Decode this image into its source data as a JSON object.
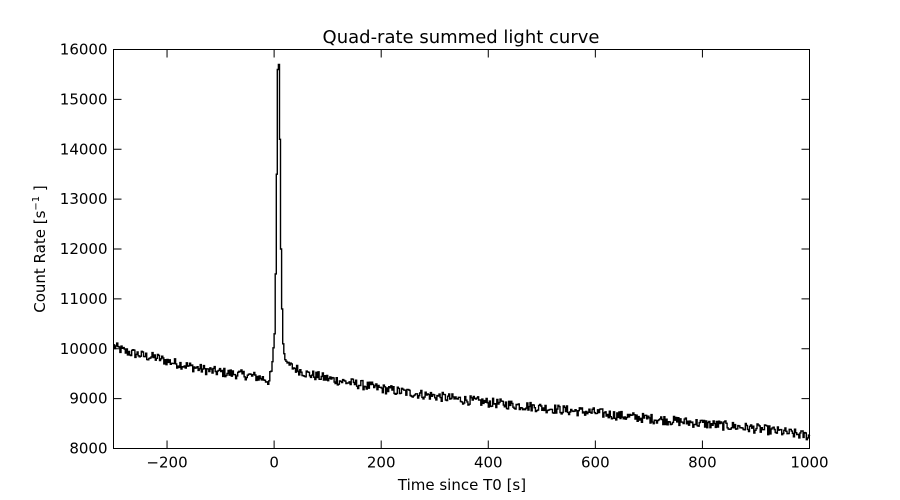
{
  "chart_data": {
    "type": "line",
    "title": "Quad-rate summed light curve",
    "xlabel": "Time since T0 [s]",
    "ylabel": "Count Rate [s",
    "ylabel_sup": "−1",
    "ylabel_close": " ]",
    "xlim": [
      -300,
      1000
    ],
    "ylim": [
      8000,
      16000
    ],
    "xticks": [
      -200,
      0,
      200,
      400,
      600,
      800,
      1000
    ],
    "yticks": [
      8000,
      9000,
      10000,
      11000,
      12000,
      13000,
      14000,
      15000,
      16000
    ],
    "xtick_labels": [
      "−200",
      "0",
      "200",
      "400",
      "600",
      "800",
      "1000"
    ],
    "ytick_labels": [
      "8000",
      "9000",
      "10000",
      "11000",
      "12000",
      "13000",
      "14000",
      "15000",
      "16000"
    ],
    "grid": false,
    "line_color": "#000000",
    "series": [
      {
        "x": [
          -300,
          -280,
          -260,
          -240,
          -220,
          -200,
          -180,
          -160,
          -140,
          -120,
          -100,
          -80,
          -60,
          -40,
          -20,
          -10,
          -5,
          0,
          2,
          4,
          6,
          8,
          10,
          12,
          14,
          16,
          18,
          20,
          25,
          30,
          40,
          60,
          80,
          100,
          150,
          200,
          250,
          300,
          350,
          400,
          450,
          500,
          550,
          600,
          650,
          700,
          750,
          800,
          850,
          900,
          950,
          1000
        ],
        "y": [
          10050,
          9950,
          9900,
          9850,
          9820,
          9750,
          9700,
          9650,
          9600,
          9560,
          9530,
          9500,
          9480,
          9450,
          9400,
          9350,
          9600,
          10300,
          11500,
          13500,
          15600,
          15700,
          14200,
          12000,
          10800,
          10100,
          9900,
          9780,
          9700,
          9650,
          9600,
          9500,
          9450,
          9400,
          9300,
          9200,
          9120,
          9050,
          8980,
          8920,
          8870,
          8820,
          8760,
          8720,
          8650,
          8600,
          8550,
          8500,
          8450,
          8400,
          8330,
          8250
        ]
      }
    ]
  }
}
